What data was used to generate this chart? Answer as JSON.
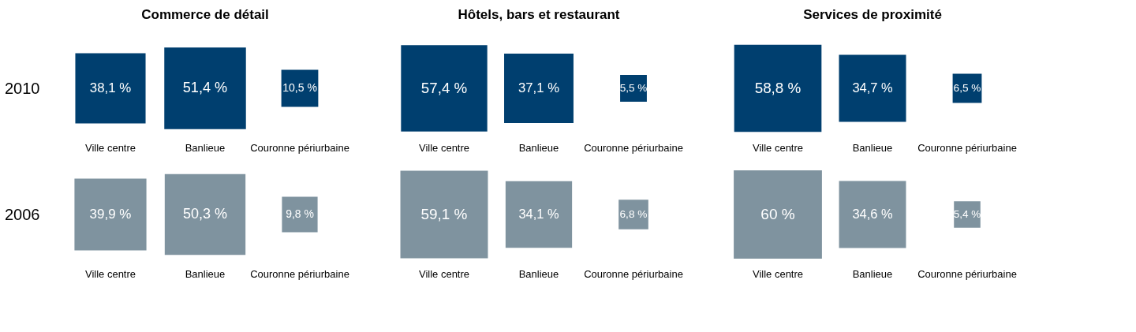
{
  "chart_data": [
    {
      "type": "other",
      "title": "Commerce de détail",
      "categories": [
        "Ville centre",
        "Banlieue",
        "Couronne périurbaine"
      ],
      "series": [
        {
          "name": "2010",
          "color": "#003f6f",
          "values": [
            38.1,
            51.4,
            10.5
          ],
          "value_labels": [
            "38,1 %",
            "51,4 %",
            "10,5 %"
          ]
        },
        {
          "name": "2006",
          "color": "#7f939f",
          "values": [
            39.9,
            50.3,
            9.8
          ],
          "value_labels": [
            "39,9 %",
            "50,3 %",
            "9,8 %"
          ]
        }
      ]
    },
    {
      "type": "other",
      "title": "Hôtels, bars et restaurant",
      "categories": [
        "Ville centre",
        "Banlieue",
        "Couronne périurbaine"
      ],
      "series": [
        {
          "color": "#003f6f",
          "values": [
            57.4,
            37.1,
            5.5
          ],
          "value_labels": [
            "57,4 %",
            "37,1 %",
            "5,5 %"
          ]
        },
        {
          "color": "#7f939f",
          "values": [
            59.1,
            34.1,
            6.8
          ],
          "value_labels": [
            "59,1 %",
            "34,1 %",
            "6,8 %"
          ]
        }
      ]
    },
    {
      "type": "other",
      "title": "Services de proximité",
      "categories": [
        "Ville centre",
        "Banlieue",
        "Couronne périurbaine"
      ],
      "series": [
        {
          "color": "#003f6f",
          "values": [
            58.8,
            34.7,
            6.5
          ],
          "value_labels": [
            "58,8 %",
            "34,7 %",
            "6,5 %"
          ]
        },
        {
          "color": "#7f939f",
          "values": [
            60,
            34.6,
            5.4
          ],
          "value_labels": [
            "60 %",
            "34,6 %",
            "5,4 %"
          ]
        }
      ]
    }
  ]
}
